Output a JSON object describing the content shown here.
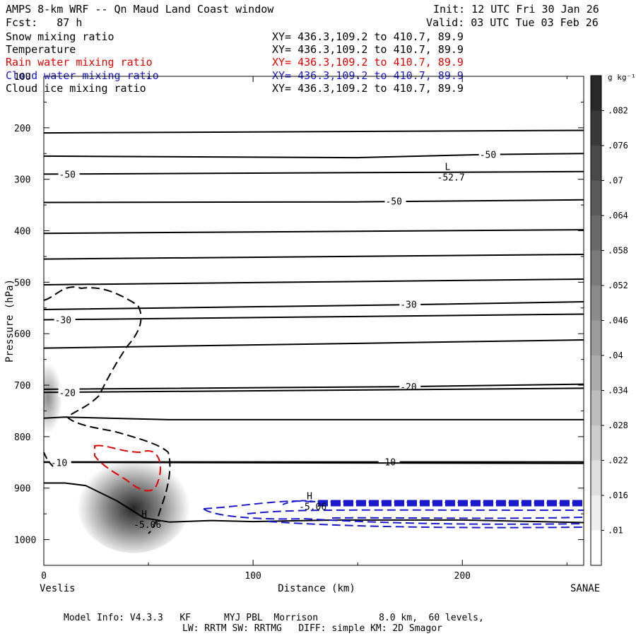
{
  "header": {
    "title": "AMPS 8-km WRF -- Qn Maud Land Coast window",
    "init": "Init: 12 UTC Fri 30 Jan 26",
    "fcst": "Fcst:   87 h",
    "valid": "Valid: 03 UTC Tue 03 Feb 26"
  },
  "fields": [
    {
      "name": "Snow mixing ratio",
      "xy": "XY= 436.3,109.2 to 410.7, 89.9",
      "color": "#000000"
    },
    {
      "name": "Temperature",
      "xy": "XY= 436.3,109.2 to 410.7, 89.9",
      "color": "#000000"
    },
    {
      "name": "Rain water mixing ratio",
      "xy": "XY= 436.3,109.2 to 410.7, 89.9",
      "color": "#e00000"
    },
    {
      "name": "Cloud water mixing ratio",
      "xy": "XY= 436.3,109.2 to 410.7, 89.9",
      "color": "#1a1acc"
    },
    {
      "name": "Cloud ice mixing ratio",
      "xy": "XY= 436.3,109.2 to 410.7, 89.9",
      "color": "#000000"
    }
  ],
  "footer": {
    "line1": "Model Info: V4.3.3   KF      MYJ PBL  Morrison           8.0 km,  60 levels,",
    "line2": "LW: RRTM SW: RRTMG   DIFF: simple KM: 2D Smagor"
  },
  "chart_data": {
    "type": "cross-section",
    "xlabel": "Distance (km)",
    "ylabel": "Pressure (hPa)",
    "x_left_label": "Veslis",
    "x_right_label": "SANAE",
    "xlim": [
      0,
      258
    ],
    "ylim": [
      1050,
      100
    ],
    "x_ticks": [
      0,
      100,
      200
    ],
    "y_ticks": [
      100,
      200,
      300,
      400,
      500,
      600,
      700,
      800,
      900,
      1000
    ],
    "colorbar": {
      "unit": "g kg⁻¹",
      "levels": [
        0.01,
        0.016,
        0.022,
        0.028,
        0.034,
        0.04,
        0.046,
        0.052,
        0.058,
        0.064,
        0.07,
        0.076,
        0.082
      ],
      "tick_labels": [
        ".01",
        ".016",
        ".022",
        ".028",
        ".034",
        ".04",
        ".046",
        ".052",
        ".058",
        ".064",
        ".07",
        ".076",
        ".082"
      ]
    },
    "temperature_isotherms": [
      {
        "points": [
          [
            0,
            210
          ],
          [
            258,
            205
          ]
        ]
      },
      {
        "points": [
          [
            0,
            255
          ],
          [
            150,
            258
          ],
          [
            210,
            252
          ],
          [
            258,
            250
          ]
        ],
        "label": "-50",
        "label_at": [
          213,
          252
        ]
      },
      {
        "points": [
          [
            0,
            290
          ],
          [
            258,
            285
          ]
        ],
        "label": "-50",
        "label_at": [
          12,
          290
        ]
      },
      {
        "points": [
          [
            0,
            345
          ],
          [
            150,
            344
          ],
          [
            258,
            340
          ]
        ],
        "label": "-50",
        "label_at": [
          168,
          342
        ]
      },
      {
        "points": [
          [
            0,
            405
          ],
          [
            258,
            398
          ]
        ]
      },
      {
        "points": [
          [
            0,
            455
          ],
          [
            258,
            446
          ]
        ]
      },
      {
        "points": [
          [
            0,
            505
          ],
          [
            258,
            494
          ]
        ]
      },
      {
        "points": [
          [
            0,
            553
          ],
          [
            170,
            544
          ],
          [
            258,
            538
          ]
        ],
        "label": "-30",
        "label_at": [
          175,
          543
        ]
      },
      {
        "points": [
          [
            0,
            573
          ],
          [
            258,
            562
          ]
        ],
        "label": "-30",
        "label_at": [
          10,
          573
        ]
      },
      {
        "points": [
          [
            0,
            628
          ],
          [
            258,
            612
          ]
        ]
      },
      {
        "points": [
          [
            0,
            708
          ],
          [
            170,
            703
          ],
          [
            258,
            698
          ]
        ],
        "label": "-20",
        "label_at": [
          175,
          703
        ]
      },
      {
        "points": [
          [
            0,
            714
          ],
          [
            258,
            706
          ]
        ],
        "label": "-20",
        "label_at": [
          12,
          714
        ]
      },
      {
        "points": [
          [
            0,
            764
          ],
          [
            10,
            762
          ],
          [
            60,
            767
          ],
          [
            258,
            767
          ]
        ]
      },
      {
        "points": [
          [
            0,
            849
          ],
          [
            258,
            849
          ]
        ],
        "label": "-10",
        "label_at": [
          165,
          849
        ]
      },
      {
        "points": [
          [
            0,
            850
          ],
          [
            258,
            852
          ]
        ],
        "label": "-10",
        "label_at": [
          8,
          850
        ]
      },
      {
        "points": [
          [
            0,
            890
          ],
          [
            10,
            890
          ],
          [
            20,
            895
          ],
          [
            35,
            925
          ],
          [
            48,
            958
          ],
          [
            60,
            966
          ],
          [
            80,
            963
          ],
          [
            100,
            965
          ],
          [
            140,
            962
          ],
          [
            200,
            962
          ],
          [
            258,
            967
          ]
        ]
      }
    ],
    "extremes": [
      {
        "type": "L",
        "value": "-52.7",
        "x": 193,
        "p": 290
      },
      {
        "type": "H",
        "value": "-5.06",
        "x": 48,
        "p": 965
      },
      {
        "type": "H",
        "value": "-5.06",
        "x": 127,
        "p": 930
      }
    ],
    "snow_max_location": {
      "x": 48,
      "p": 940,
      "max": 0.082
    }
  }
}
